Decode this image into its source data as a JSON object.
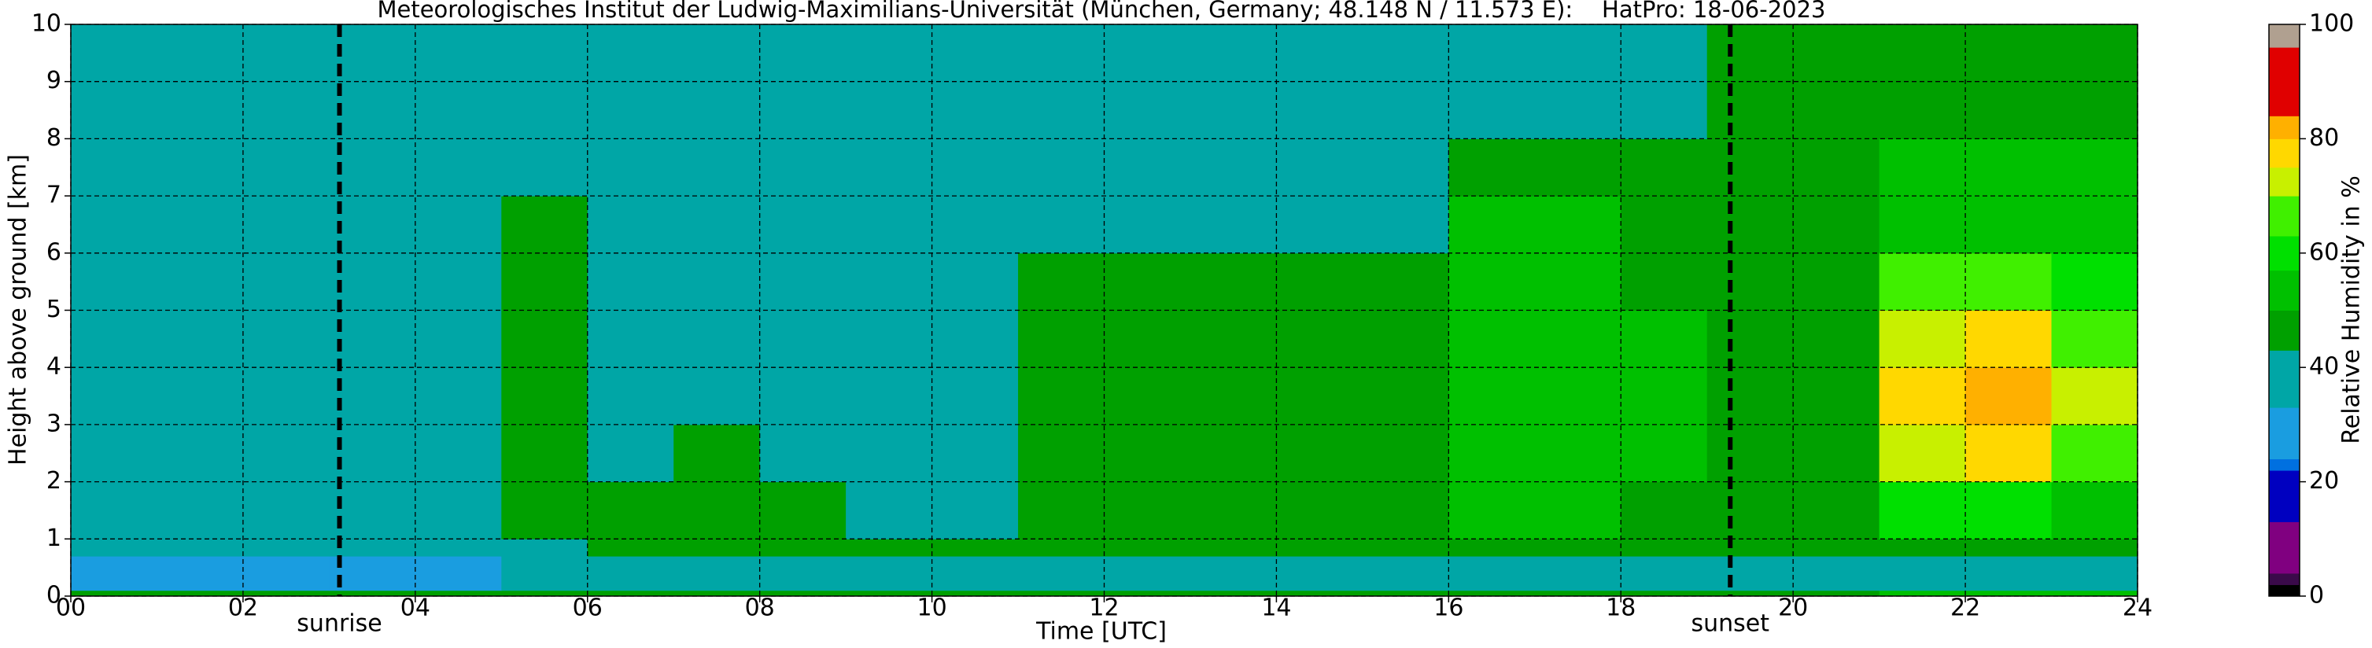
{
  "chart_data": {
    "type": "heatmap",
    "title": "Meteorologisches Institut der Ludwig-Maximilians-Universität (München, Germany; 48.148 N / 11.573 E):    HatPro: 18-06-2023",
    "xlabel": "Time [UTC]",
    "ylabel": "Height above ground [km]",
    "x_edges": [
      0,
      1,
      2,
      3,
      4,
      5,
      6,
      7,
      8,
      9,
      10,
      11,
      12,
      13,
      14,
      15,
      16,
      17,
      18,
      19,
      20,
      21,
      22,
      23,
      24
    ],
    "y_edges": [
      0,
      0.1,
      0.7,
      1,
      2,
      3,
      4,
      5,
      6,
      7,
      8,
      10
    ],
    "z": [
      [
        48,
        48,
        48,
        48,
        48,
        48,
        48,
        48,
        48,
        48,
        48,
        48,
        48,
        48,
        48,
        48,
        48,
        48,
        48,
        48,
        48,
        50,
        50,
        50
      ],
      [
        30,
        30,
        30,
        30,
        30,
        33,
        38,
        37,
        37,
        36,
        36,
        37,
        38,
        38,
        38,
        38,
        38,
        38,
        38,
        38,
        38,
        42,
        42,
        42
      ],
      [
        37,
        37,
        37,
        37,
        37,
        40,
        46,
        46,
        46,
        46,
        46,
        46,
        47,
        47,
        47,
        47,
        46,
        46,
        46,
        44,
        44,
        46,
        46,
        48
      ],
      [
        42,
        42,
        41,
        38,
        38,
        44,
        44,
        44,
        44,
        40,
        40,
        44,
        45,
        45,
        45,
        45,
        52,
        50,
        48,
        46,
        46,
        58,
        58,
        56
      ],
      [
        40,
        38,
        38,
        38,
        38,
        44,
        37,
        43,
        42,
        33,
        33,
        44,
        45,
        45,
        45,
        45,
        52,
        52,
        50,
        46,
        46,
        74,
        76,
        68
      ],
      [
        38,
        37,
        37,
        37,
        37,
        44,
        37,
        42,
        41,
        33,
        33,
        45,
        45,
        45,
        45,
        45,
        52,
        52,
        50,
        46,
        46,
        78,
        80,
        70
      ],
      [
        38,
        37,
        37,
        37,
        37,
        44,
        37,
        42,
        41,
        33,
        33,
        45,
        45,
        45,
        45,
        45,
        52,
        51,
        50,
        46,
        46,
        74,
        76,
        68
      ],
      [
        38,
        37,
        37,
        37,
        37,
        44,
        37,
        41,
        40,
        33,
        33,
        43,
        43,
        43,
        43,
        43,
        50,
        50,
        48,
        46,
        46,
        66,
        68,
        62
      ],
      [
        38,
        37,
        37,
        37,
        37,
        43,
        37,
        39,
        38,
        33,
        33,
        38,
        37,
        37,
        37,
        37,
        50,
        50,
        48,
        46,
        46,
        54,
        54,
        52
      ],
      [
        38,
        37,
        37,
        37,
        37,
        42,
        37,
        37,
        37,
        35,
        36,
        37,
        37,
        37,
        37,
        37,
        45,
        45,
        45,
        45,
        45,
        50,
        50,
        50
      ],
      [
        40,
        39,
        39,
        39,
        41,
        42,
        37,
        37,
        37,
        37,
        37,
        37,
        37,
        37,
        37,
        37,
        40,
        40,
        40,
        43,
        44,
        48,
        48,
        48
      ]
    ],
    "xlim": [
      0,
      24
    ],
    "ylim": [
      0,
      10
    ],
    "xticks": [
      {
        "value": 0,
        "label": "00"
      },
      {
        "value": 2,
        "label": "02"
      },
      {
        "value": 4,
        "label": "04"
      },
      {
        "value": 6,
        "label": "06"
      },
      {
        "value": 8,
        "label": "08"
      },
      10,
      12,
      14,
      16,
      18,
      20,
      22,
      24
    ],
    "yticks": [
      0,
      1,
      2,
      3,
      4,
      5,
      6,
      7,
      8,
      9,
      10
    ],
    "grid": true,
    "vlines": [
      {
        "x": 3.12,
        "label": "sunrise"
      },
      {
        "x": 19.27,
        "label": "sunset"
      }
    ],
    "colorbar": {
      "label": "Relative Humidity in %",
      "lim": [
        0,
        100
      ],
      "ticks": [
        0,
        20,
        40,
        60,
        80,
        100
      ],
      "levels": [
        0,
        2,
        4,
        13,
        22,
        24,
        33,
        43,
        50,
        57,
        63,
        70,
        75,
        80,
        84,
        96,
        100
      ],
      "colors": [
        "#000000",
        "#3a0a4a",
        "#800080",
        "#0000c0",
        "#0070e0",
        "#1a9de0",
        "#00a6a6",
        "#00a000",
        "#00c000",
        "#00e000",
        "#40f000",
        "#c8f000",
        "#ffd800",
        "#ffb000",
        "#e00000",
        "#b0a090"
      ]
    }
  }
}
